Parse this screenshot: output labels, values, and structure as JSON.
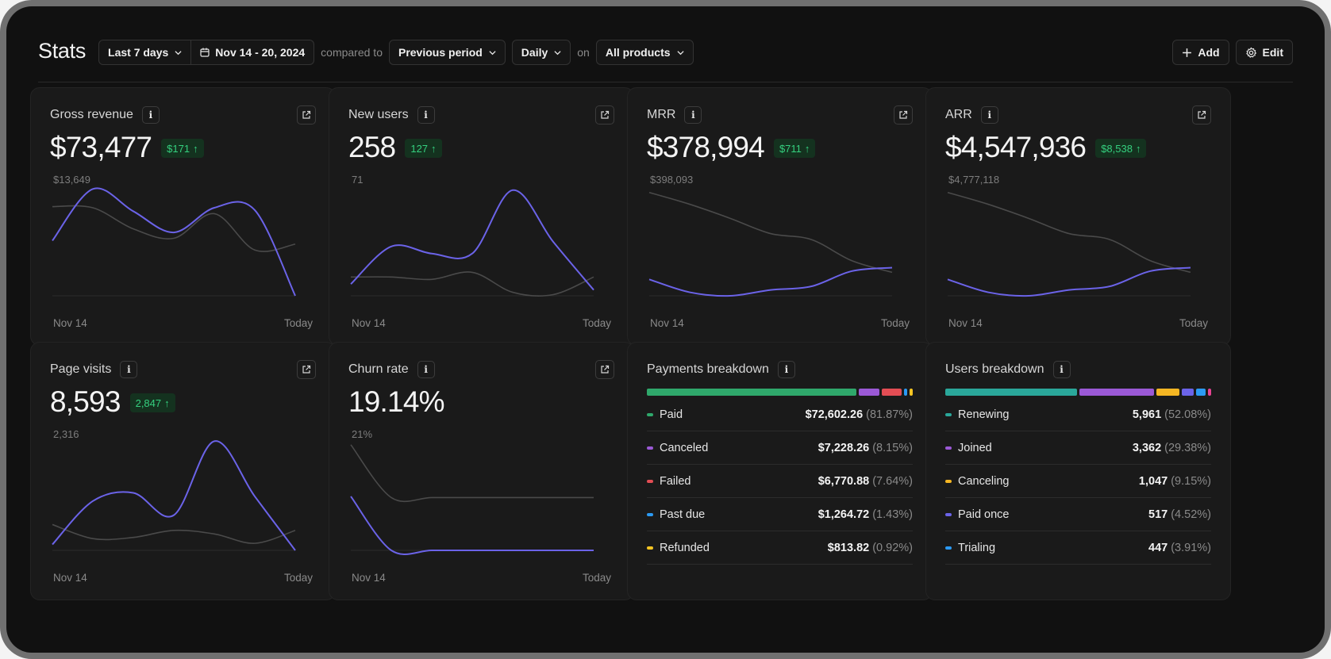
{
  "header": {
    "title": "Stats",
    "range_label": "Last 7 days",
    "date_label": "Nov 14 - 20, 2024",
    "compared_to": "compared to",
    "comparison_label": "Previous period",
    "interval_label": "Daily",
    "on_label": "on",
    "products_label": "All products",
    "add_label": "Add",
    "edit_label": "Edit"
  },
  "colors": {
    "current": "#6b63e8",
    "previous": "#4a4a4a",
    "positive": "#35d07f"
  },
  "cards": {
    "gross_revenue": {
      "title": "Gross revenue",
      "value": "$73,477",
      "delta": "$171",
      "peak": "$13,649",
      "x_start": "Nov 14",
      "x_end": "Today"
    },
    "new_users": {
      "title": "New users",
      "value": "258",
      "delta": "127",
      "peak": "71",
      "x_start": "Nov 14",
      "x_end": "Today"
    },
    "mrr": {
      "title": "MRR",
      "value": "$378,994",
      "delta": "$711",
      "peak": "$398,093",
      "x_start": "Nov 14",
      "x_end": "Today"
    },
    "arr": {
      "title": "ARR",
      "value": "$4,547,936",
      "delta": "$8,538",
      "peak": "$4,777,118",
      "x_start": "Nov 14",
      "x_end": "Today"
    },
    "page_visits": {
      "title": "Page visits",
      "value": "8,593",
      "delta": "2,847",
      "peak": "2,316",
      "x_start": "Nov 14",
      "x_end": "Today"
    },
    "churn_rate": {
      "title": "Churn rate",
      "value": "19.14%",
      "peak": "21%",
      "x_start": "Nov 14",
      "x_end": "Today"
    }
  },
  "series": {
    "gross_revenue": {
      "current": [
        0.47,
        0.91,
        0.72,
        0.54,
        0.75,
        0.73,
        0.0
      ],
      "previous": [
        0.76,
        0.75,
        0.57,
        0.49,
        0.7,
        0.39,
        0.44
      ]
    },
    "new_users": {
      "current": [
        0.1,
        0.42,
        0.36,
        0.36,
        0.9,
        0.46,
        0.05
      ],
      "previous": [
        0.16,
        0.16,
        0.14,
        0.2,
        0.03,
        0.01,
        0.16
      ]
    },
    "mrr": {
      "current": [
        0.14,
        0.03,
        0.0,
        0.05,
        0.08,
        0.21,
        0.24
      ],
      "previous": [
        0.88,
        0.78,
        0.66,
        0.53,
        0.48,
        0.3,
        0.2
      ]
    },
    "arr": {
      "current": [
        0.14,
        0.03,
        0.0,
        0.05,
        0.08,
        0.21,
        0.24
      ],
      "previous": [
        0.88,
        0.78,
        0.66,
        0.53,
        0.48,
        0.3,
        0.2
      ]
    },
    "page_visits": {
      "current": [
        0.05,
        0.42,
        0.49,
        0.3,
        0.93,
        0.46,
        0.0
      ],
      "previous": [
        0.22,
        0.1,
        0.11,
        0.17,
        0.14,
        0.06,
        0.17
      ]
    },
    "churn_rate": {
      "current": [
        0.46,
        0.0,
        0.0,
        0.0,
        0.0,
        0.0,
        0.0
      ],
      "previous": [
        0.9,
        0.45,
        0.45,
        0.45,
        0.45,
        0.45,
        0.45
      ]
    }
  },
  "payments": {
    "title": "Payments breakdown",
    "items": [
      {
        "label": "Paid",
        "value": "$72,602.26",
        "pct": "(81.87%)",
        "share": 81.87,
        "color": "#2fa86b"
      },
      {
        "label": "Canceled",
        "value": "$7,228.26",
        "pct": "(8.15%)",
        "share": 8.15,
        "color": "#9b59d6"
      },
      {
        "label": "Failed",
        "value": "$6,770.88",
        "pct": "(7.64%)",
        "share": 7.64,
        "color": "#e34d54"
      },
      {
        "label": "Past due",
        "value": "$1,264.72",
        "pct": "(1.43%)",
        "share": 1.43,
        "color": "#2b9af3"
      },
      {
        "label": "Refunded",
        "value": "$813.82",
        "pct": "(0.92%)",
        "share": 0.92,
        "color": "#f5c523"
      }
    ]
  },
  "users": {
    "title": "Users breakdown",
    "items": [
      {
        "label": "Renewing",
        "value": "5,961",
        "pct": "(52.08%)",
        "share": 52.08,
        "color": "#2aa79a"
      },
      {
        "label": "Joined",
        "value": "3,362",
        "pct": "(29.38%)",
        "share": 29.38,
        "color": "#9b59d6"
      },
      {
        "label": "Canceling",
        "value": "1,047",
        "pct": "(9.15%)",
        "share": 9.15,
        "color": "#f5b623"
      },
      {
        "label": "Paid once",
        "value": "517",
        "pct": "(4.52%)",
        "share": 4.52,
        "color": "#6b63e8"
      },
      {
        "label": "Trialing",
        "value": "447",
        "pct": "(3.91%)",
        "share": 3.91,
        "color": "#2b9af3"
      }
    ],
    "extra_bar_color": "#e84393"
  }
}
